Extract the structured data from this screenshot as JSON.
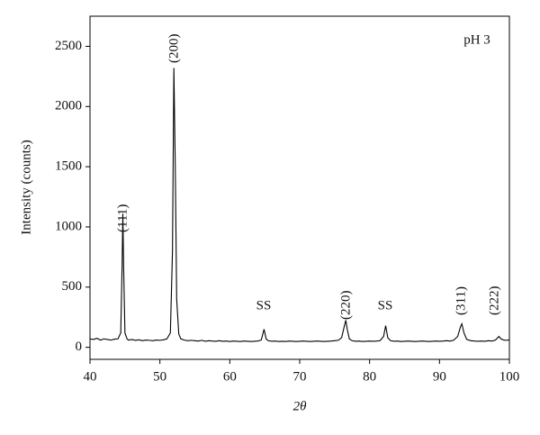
{
  "chart_data": {
    "type": "line",
    "xlabel": "2θ",
    "ylabel": "Intensity (counts)",
    "x": [
      40,
      40.5,
      41,
      41.5,
      42,
      42.5,
      43,
      43.5,
      44,
      44.4,
      44.6,
      44.7,
      44.8,
      45,
      45.3,
      45.5,
      46,
      46.5,
      47,
      47.5,
      48,
      48.5,
      49,
      49.5,
      50,
      50.5,
      51,
      51.5,
      51.8,
      52,
      52.2,
      52.4,
      52.7,
      53,
      53.5,
      54,
      54.5,
      55,
      55.5,
      56,
      56.5,
      57,
      57.5,
      58,
      58.5,
      59,
      59.5,
      60,
      60.5,
      61,
      61.5,
      62,
      62.5,
      63,
      63.5,
      64,
      64.5,
      64.9,
      65.2,
      65.5,
      66,
      66.5,
      67,
      67.5,
      68,
      68.5,
      69,
      69.5,
      70,
      70.5,
      71,
      71.5,
      72,
      72.5,
      73,
      73.5,
      74,
      74.5,
      75,
      75.5,
      76,
      76.4,
      76.6,
      76.8,
      77.1,
      77.5,
      78,
      78.5,
      79,
      79.5,
      80,
      80.5,
      81,
      81.5,
      82,
      82.3,
      82.6,
      83,
      83.5,
      84,
      84.5,
      85,
      85.5,
      86,
      86.5,
      87,
      87.5,
      88,
      88.5,
      89,
      89.5,
      90,
      90.5,
      91,
      91.5,
      92,
      92.6,
      93,
      93.2,
      93.5,
      93.9,
      94.5,
      95,
      95.5,
      96,
      96.5,
      97,
      97.5,
      98,
      98.5,
      98.8,
      99.2,
      99.6,
      100
    ],
    "series": [
      {
        "color": "#000000",
        "values": [
          70,
          65,
          75,
          60,
          70,
          65,
          60,
          68,
          70,
          120,
          700,
          1110,
          700,
          120,
          70,
          60,
          65,
          58,
          62,
          55,
          60,
          58,
          55,
          60,
          58,
          62,
          70,
          120,
          800,
          2320,
          1500,
          400,
          110,
          70,
          60,
          55,
          58,
          55,
          52,
          58,
          50,
          55,
          52,
          50,
          55,
          50,
          52,
          48,
          52,
          50,
          48,
          52,
          50,
          48,
          50,
          52,
          60,
          150,
          70,
          55,
          50,
          52,
          48,
          50,
          48,
          52,
          50,
          48,
          50,
          52,
          50,
          48,
          50,
          52,
          50,
          48,
          50,
          52,
          55,
          58,
          80,
          180,
          225,
          150,
          70,
          55,
          50,
          52,
          48,
          50,
          52,
          50,
          52,
          55,
          90,
          180,
          80,
          55,
          50,
          52,
          48,
          50,
          52,
          50,
          48,
          50,
          52,
          50,
          48,
          50,
          52,
          50,
          52,
          55,
          52,
          58,
          90,
          170,
          195,
          120,
          65,
          55,
          52,
          50,
          52,
          50,
          55,
          52,
          60,
          90,
          70,
          60,
          58,
          62
        ]
      }
    ],
    "annotations": [
      "(111)",
      "(200)",
      "SS",
      "(220)",
      "SS",
      "(311)",
      "(222)",
      "pH 3"
    ],
    "xlim": [
      40,
      100
    ],
    "xticks": [
      40,
      50,
      60,
      70,
      80,
      90,
      100
    ],
    "ylim": [
      -100,
      2750
    ],
    "yticks": [
      0,
      500,
      1000,
      1500,
      2000,
      2500
    ]
  }
}
